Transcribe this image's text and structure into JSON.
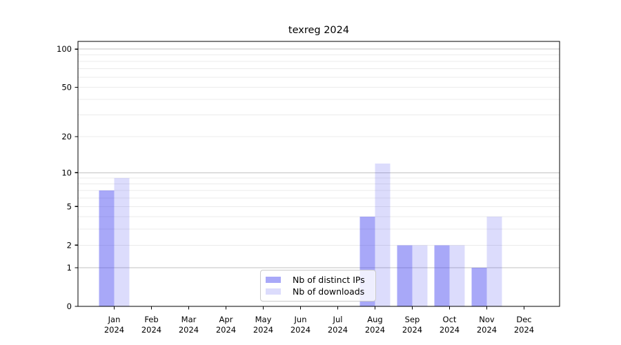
{
  "chart_data": {
    "type": "bar",
    "title": "texreg 2024",
    "categories": [
      "Jan",
      "Feb",
      "Mar",
      "Apr",
      "May",
      "Jun",
      "Jul",
      "Aug",
      "Sep",
      "Oct",
      "Nov",
      "Dec"
    ],
    "category_year": "2024",
    "series": [
      {
        "name": "Nb of distinct IPs",
        "color": "rgba(70,70,240,0.47)",
        "color_hex_on_white": "#a8a8f6",
        "values": [
          7,
          0,
          0,
          0,
          0,
          0,
          0,
          4,
          2,
          2,
          1,
          0
        ]
      },
      {
        "name": "Nb of downloads",
        "color": "rgba(70,70,240,0.19)",
        "color_hex_on_white": "#dcdcf8",
        "values": [
          9,
          0,
          0,
          0,
          0,
          0,
          0,
          12,
          2,
          2,
          4,
          0
        ]
      }
    ],
    "xlabel": "",
    "ylabel": "",
    "yscale": "log1p",
    "ylim": [
      0,
      115
    ],
    "yticks": [
      0,
      1,
      2,
      5,
      10,
      20,
      50,
      100
    ],
    "grid": {
      "major": [
        1,
        10,
        100
      ],
      "minor": [
        2,
        3,
        4,
        5,
        6,
        7,
        8,
        9,
        20,
        30,
        40,
        50,
        60,
        70,
        80,
        90
      ]
    },
    "legend_position": "bottom-center",
    "colors": {
      "axis": "#000000",
      "text": "#000000",
      "grid_major": "#c2c2c2",
      "grid_minor": "#ebebeb",
      "legend_border": "#c9c9c9"
    }
  }
}
